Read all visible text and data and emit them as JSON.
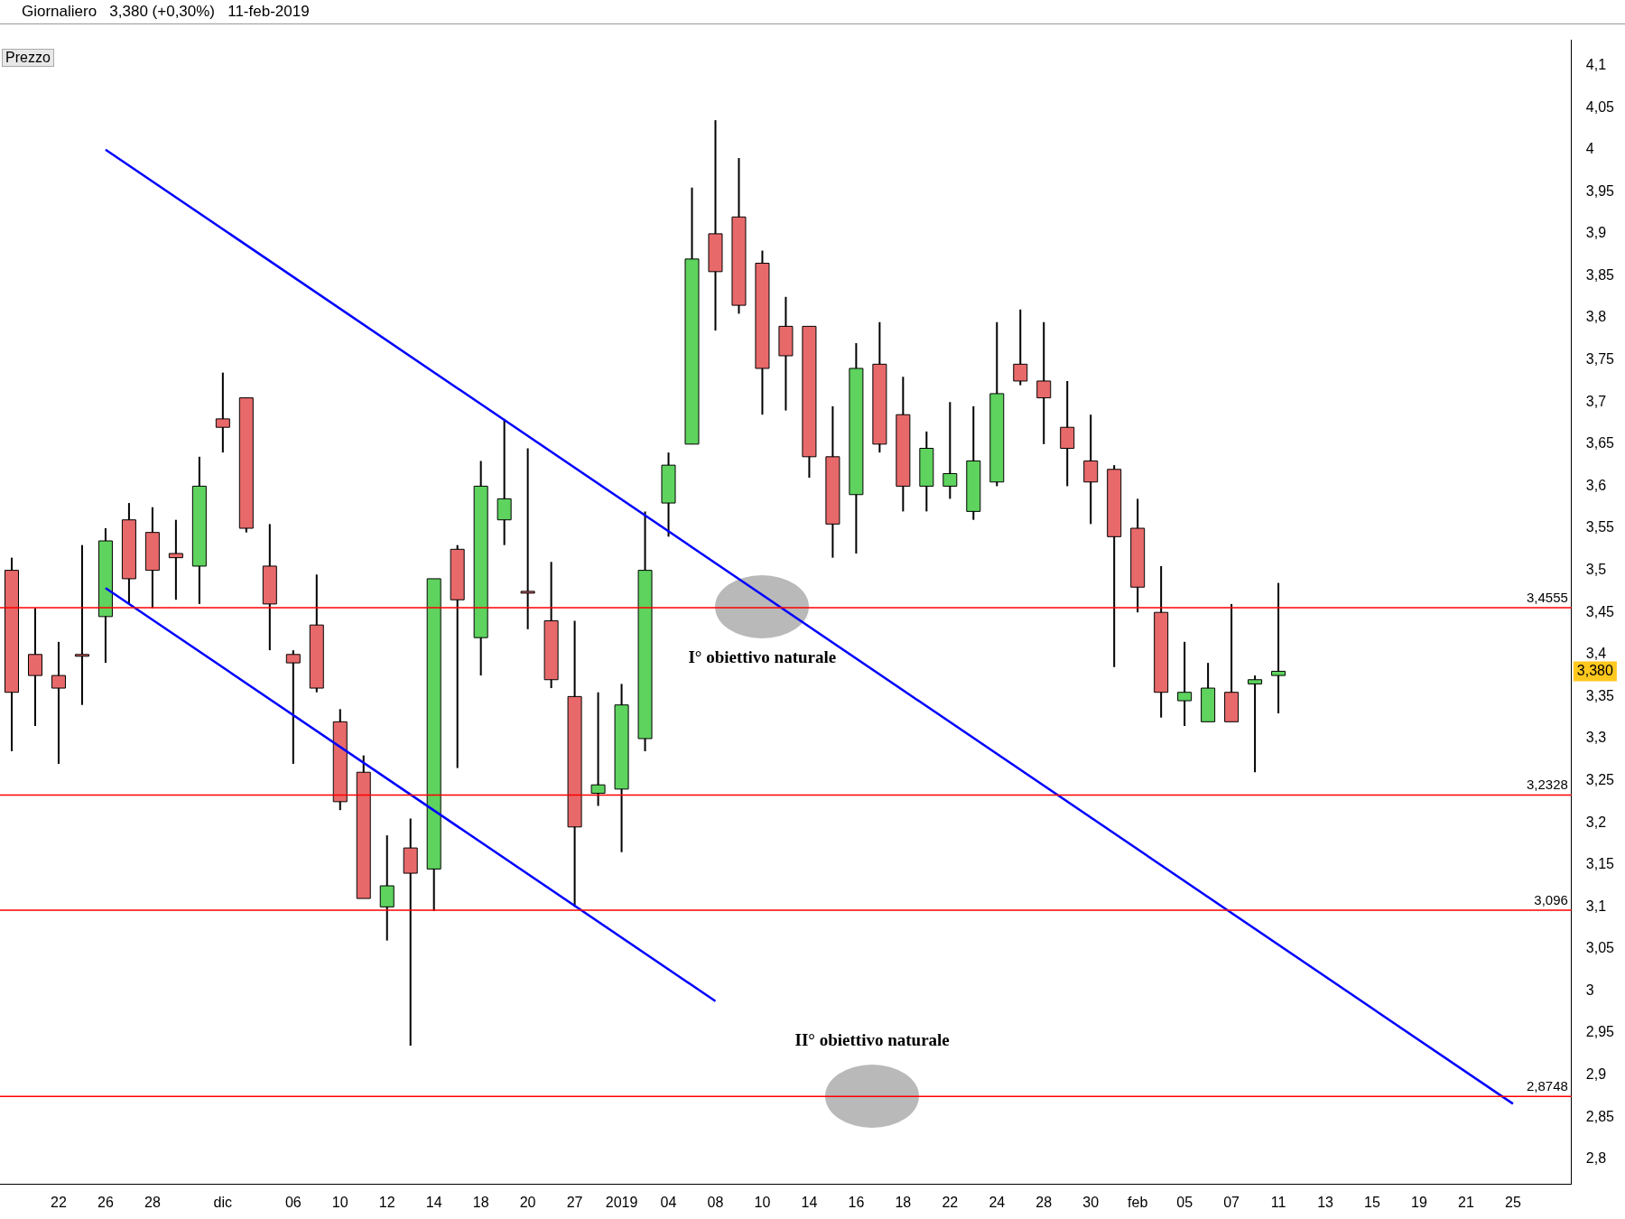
{
  "chart_data": {
    "type": "candlestick",
    "title": "Giornaliero   3,380 (+0,30%)   11-feb-2019",
    "subtitle": "Prezzo",
    "categories": [
      null,
      null,
      "22",
      null,
      "26",
      null,
      "28",
      null,
      null,
      "dic",
      null,
      null,
      "06",
      null,
      "10",
      null,
      "12",
      null,
      "14",
      null,
      "18",
      null,
      "20",
      null,
      "27",
      null,
      "2019",
      null,
      "04",
      null,
      "08",
      null,
      "10",
      null,
      "14",
      null,
      "16",
      null,
      "18",
      null,
      "22",
      null,
      "24",
      null,
      "28",
      null,
      "30",
      null,
      "feb",
      null,
      "05",
      null,
      "07",
      null,
      "11",
      null,
      "13",
      null,
      "15",
      null,
      "19",
      null,
      "21",
      null,
      "25",
      null,
      null
    ],
    "ohlc": [
      [
        3.5,
        3.515,
        3.285,
        3.355
      ],
      [
        3.4,
        3.455,
        3.315,
        3.375
      ],
      [
        3.375,
        3.415,
        3.27,
        3.36
      ],
      [
        3.4,
        3.53,
        3.34,
        3.4
      ],
      [
        3.445,
        3.55,
        3.39,
        3.535
      ],
      [
        3.56,
        3.58,
        3.46,
        3.49
      ],
      [
        3.545,
        3.575,
        3.455,
        3.5
      ],
      [
        3.52,
        3.56,
        3.465,
        3.515
      ],
      [
        3.505,
        3.635,
        3.46,
        3.6
      ],
      [
        3.68,
        3.735,
        3.64,
        3.67
      ],
      [
        3.705,
        3.705,
        3.545,
        3.55
      ],
      [
        3.505,
        3.555,
        3.405,
        3.46
      ],
      [
        3.4,
        3.405,
        3.27,
        3.39
      ],
      [
        3.435,
        3.495,
        3.355,
        3.36
      ],
      [
        3.32,
        3.335,
        3.215,
        3.225
      ],
      [
        3.26,
        3.28,
        3.11,
        3.11
      ],
      [
        3.1,
        3.185,
        3.06,
        3.125
      ],
      [
        3.17,
        3.205,
        2.935,
        3.14
      ],
      [
        3.145,
        3.49,
        3.095,
        3.49
      ],
      [
        3.525,
        3.53,
        3.265,
        3.465
      ],
      [
        3.42,
        3.63,
        3.375,
        3.6
      ],
      [
        3.56,
        3.68,
        3.53,
        3.585
      ],
      [
        3.475,
        3.645,
        3.43,
        3.475
      ],
      [
        3.44,
        3.51,
        3.36,
        3.37
      ],
      [
        3.35,
        3.44,
        3.1,
        3.195
      ],
      [
        3.235,
        3.355,
        3.22,
        3.245
      ],
      [
        3.24,
        3.365,
        3.165,
        3.34
      ],
      [
        3.3,
        3.57,
        3.285,
        3.5
      ],
      [
        3.58,
        3.64,
        3.54,
        3.625
      ],
      [
        3.65,
        3.955,
        3.65,
        3.87
      ],
      [
        3.9,
        4.035,
        3.785,
        3.855
      ],
      [
        3.92,
        3.99,
        3.805,
        3.815
      ],
      [
        3.865,
        3.88,
        3.685,
        3.74
      ],
      [
        3.79,
        3.825,
        3.69,
        3.755
      ],
      [
        3.79,
        3.79,
        3.61,
        3.635
      ],
      [
        3.635,
        3.695,
        3.515,
        3.555
      ],
      [
        3.59,
        3.77,
        3.52,
        3.74
      ],
      [
        3.745,
        3.795,
        3.64,
        3.65
      ],
      [
        3.685,
        3.73,
        3.57,
        3.6
      ],
      [
        3.6,
        3.665,
        3.57,
        3.645
      ],
      [
        3.6,
        3.7,
        3.585,
        3.615
      ],
      [
        3.57,
        3.695,
        3.56,
        3.63
      ],
      [
        3.605,
        3.795,
        3.6,
        3.71
      ],
      [
        3.745,
        3.81,
        3.72,
        3.725
      ],
      [
        3.725,
        3.795,
        3.65,
        3.705
      ],
      [
        3.67,
        3.725,
        3.6,
        3.645
      ],
      [
        3.63,
        3.685,
        3.555,
        3.605
      ],
      [
        3.62,
        3.625,
        3.385,
        3.54
      ],
      [
        3.55,
        3.585,
        3.45,
        3.48
      ],
      [
        3.45,
        3.505,
        3.325,
        3.355
      ],
      [
        3.345,
        3.415,
        3.315,
        3.355
      ],
      [
        3.32,
        3.39,
        3.32,
        3.36
      ],
      [
        3.355,
        3.46,
        3.32,
        3.32
      ],
      [
        3.365,
        3.375,
        3.26,
        3.37
      ],
      [
        3.375,
        3.485,
        3.33,
        3.38
      ],
      null,
      null,
      null,
      null,
      null,
      null,
      null,
      null,
      null,
      null,
      null,
      null
    ],
    "colors": [
      "#e8696a",
      "#e8696a",
      "#e8696a",
      "#e8696a",
      "#5ed35e",
      "#e8696a",
      "#e8696a",
      "#e8696a",
      "#5ed35e",
      "#e8696a",
      "#e8696a",
      "#e8696a",
      "#e8696a",
      "#e8696a",
      "#e8696a",
      "#e8696a",
      "#5ed35e",
      "#e8696a",
      "#5ed35e",
      "#e8696a",
      "#5ed35e",
      "#5ed35e",
      "#e8696a",
      "#e8696a",
      "#e8696a",
      "#5ed35e",
      "#5ed35e",
      "#5ed35e",
      "#5ed35e",
      "#5ed35e",
      "#e8696a",
      "#e8696a",
      "#e8696a",
      "#e8696a",
      "#e8696a",
      "#e8696a",
      "#5ed35e",
      "#e8696a",
      "#e8696a",
      "#5ed35e",
      "#5ed35e",
      "#5ed35e",
      "#5ed35e",
      "#e8696a",
      "#e8696a",
      "#e8696a",
      "#e8696a",
      "#e8696a",
      "#e8696a",
      "#e8696a",
      "#5ed35e",
      "#5ed35e",
      "#e8696a",
      "#5ed35e",
      "#5ed35e",
      null,
      null,
      null,
      null,
      null,
      null,
      null,
      null,
      null,
      null,
      null,
      null
    ],
    "series": [
      {
        "type": "line",
        "color": "#0000ff",
        "x": [
          "26",
          "25"
        ],
        "values": [
          4.0,
          2.866
        ]
      },
      {
        "type": "line",
        "color": "#0000ff",
        "x": [
          "26",
          "08"
        ],
        "values": [
          3.479,
          2.988
        ]
      }
    ],
    "ref_lines": [
      {
        "axis": "y",
        "value": 3.4555,
        "label": "3,4555",
        "color": "#ff0000"
      },
      {
        "axis": "y",
        "value": 3.2328,
        "label": "3,2328",
        "color": "#ff0000"
      },
      {
        "axis": "y",
        "value": 3.096,
        "label": "3,096",
        "color": "#ff0000"
      },
      {
        "axis": "y",
        "value": 2.8748,
        "label": "2,8748",
        "color": "#ff0000"
      }
    ],
    "annotations": [
      "I° obiettivo naturale",
      "II° obiettivo naturale",
      "3,380"
    ],
    "ylim": [
      2.77,
      4.13
    ],
    "yticks": [
      {
        "value": 2.8,
        "label": "2,8"
      },
      {
        "value": 2.85,
        "label": "2,85"
      },
      {
        "value": 2.9,
        "label": "2,9"
      },
      {
        "value": 2.95,
        "label": "2,95"
      },
      3,
      {
        "value": 3.05,
        "label": "3,05"
      },
      {
        "value": 3.1,
        "label": "3,1"
      },
      {
        "value": 3.15,
        "label": "3,15"
      },
      {
        "value": 3.2,
        "label": "3,2"
      },
      {
        "value": 3.25,
        "label": "3,25"
      },
      {
        "value": 3.3,
        "label": "3,3"
      },
      {
        "value": 3.35,
        "label": "3,35"
      },
      {
        "value": 3.4,
        "label": "3,4"
      },
      {
        "value": 3.45,
        "label": "3,45"
      },
      {
        "value": 3.5,
        "label": "3,5"
      },
      {
        "value": 3.55,
        "label": "3,55"
      },
      {
        "value": 3.6,
        "label": "3,6"
      },
      {
        "value": 3.65,
        "label": "3,65"
      },
      {
        "value": 3.7,
        "label": "3,7"
      },
      {
        "value": 3.75,
        "label": "3,75"
      },
      {
        "value": 3.8,
        "label": "3,8"
      },
      {
        "value": 3.85,
        "label": "3,85"
      },
      {
        "value": 3.9,
        "label": "3,9"
      },
      {
        "value": 3.95,
        "label": "3,95"
      },
      4,
      {
        "value": 4.05,
        "label": "4,05"
      },
      {
        "value": 4.1,
        "label": "4,1"
      }
    ],
    "grid": false,
    "legend": false
  }
}
